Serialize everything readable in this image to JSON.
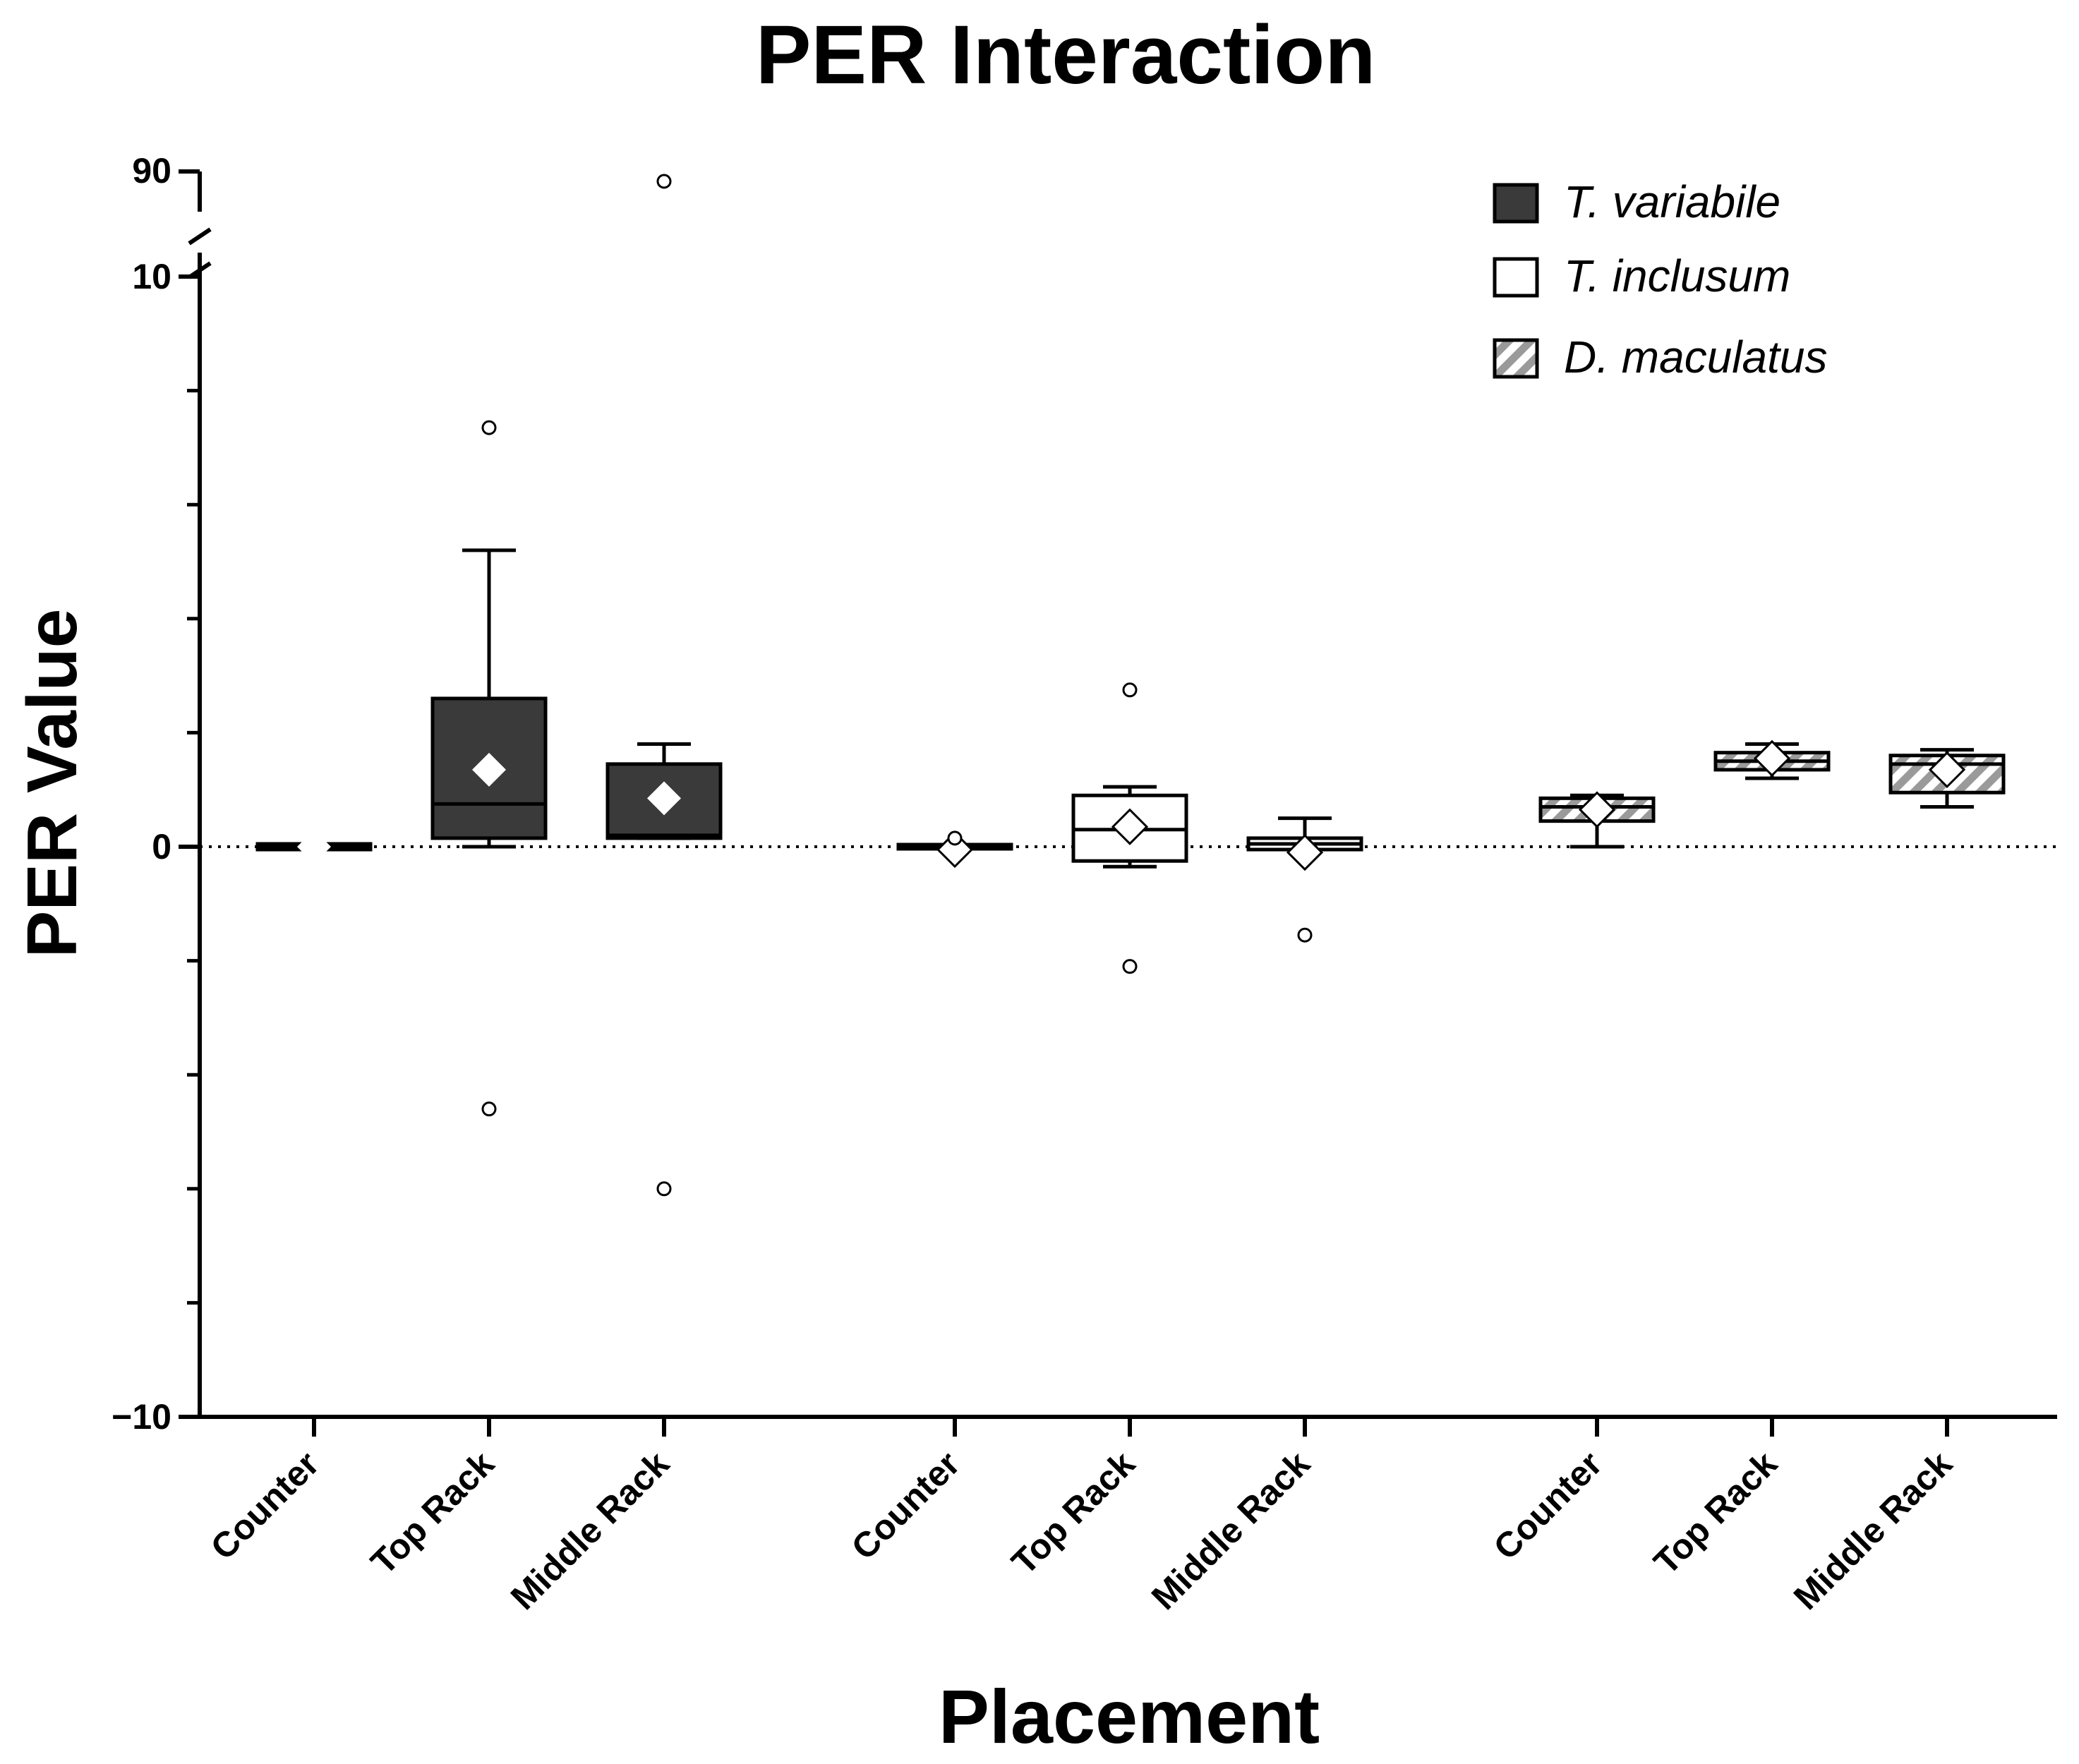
{
  "chart_data": {
    "type": "box",
    "title": "PER Interaction",
    "xlabel": "Placement",
    "ylabel": "PER Value",
    "categories": [
      "Counter",
      "Top Rack",
      "Middle Rack"
    ],
    "y_ticks_major": [
      {
        "value": -10,
        "label": "−10"
      },
      {
        "value": 0,
        "label": "0"
      },
      {
        "value": 10,
        "label": "10"
      }
    ],
    "y_break_upper_tick": {
      "value": 90,
      "label": "90"
    },
    "ylim_lower_segment": [
      -10,
      10
    ],
    "y_minor_step": 2,
    "reference_line": {
      "value": 0,
      "style": "dotted"
    },
    "legend_position": "top-right",
    "series": [
      {
        "name": "T. variabile",
        "fill": "dark",
        "boxes": [
          {
            "category": "Counter",
            "whisker_low": -0.05,
            "q1": -0.05,
            "median": 0.0,
            "q3": 0.05,
            "whisker_high": 0.05,
            "mean": 0.0,
            "outliers": []
          },
          {
            "category": "Top Rack",
            "whisker_low": 0.0,
            "q1": 0.15,
            "median": 0.75,
            "q3": 2.6,
            "whisker_high": 5.2,
            "mean": 1.35,
            "outliers": [
              7.35,
              -4.6
            ]
          },
          {
            "category": "Middle Rack",
            "whisker_low": 0.15,
            "q1": 0.15,
            "median": 0.2,
            "q3": 1.45,
            "whisker_high": 1.8,
            "mean": 0.85,
            "outliers": [
              88.0,
              -6.0
            ]
          }
        ]
      },
      {
        "name": "T. inclusum",
        "fill": "white",
        "boxes": [
          {
            "category": "Counter",
            "whisker_low": 0.0,
            "q1": 0.0,
            "median": 0.0,
            "q3": 0.0,
            "whisker_high": 0.0,
            "mean": -0.05,
            "outliers": [
              0.15
            ]
          },
          {
            "category": "Top Rack",
            "whisker_low": -0.35,
            "q1": -0.25,
            "median": 0.3,
            "q3": 0.9,
            "whisker_high": 1.05,
            "mean": 0.35,
            "outliers": [
              2.75,
              -2.1
            ]
          },
          {
            "category": "Middle Rack",
            "whisker_low": -0.05,
            "q1": -0.05,
            "median": 0.05,
            "q3": 0.15,
            "whisker_high": 0.5,
            "mean": -0.1,
            "outliers": [
              -1.55
            ]
          }
        ]
      },
      {
        "name": "D. maculatus",
        "fill": "hatched",
        "boxes": [
          {
            "category": "Counter",
            "whisker_low": 0.0,
            "q1": 0.45,
            "median": 0.7,
            "q3": 0.85,
            "whisker_high": 0.9,
            "mean": 0.65,
            "outliers": []
          },
          {
            "category": "Top Rack",
            "whisker_low": 1.2,
            "q1": 1.35,
            "median": 1.5,
            "q3": 1.65,
            "whisker_high": 1.8,
            "mean": 1.55,
            "outliers": []
          },
          {
            "category": "Middle Rack",
            "whisker_low": 0.7,
            "q1": 0.95,
            "median": 1.45,
            "q3": 1.6,
            "whisker_high": 1.7,
            "mean": 1.35,
            "outliers": []
          }
        ]
      }
    ],
    "colors": {
      "dark_fill": "#3a3a3a",
      "white_fill": "#ffffff",
      "hatch_stripe": "#9a9a9a",
      "stroke": "#000000"
    }
  }
}
